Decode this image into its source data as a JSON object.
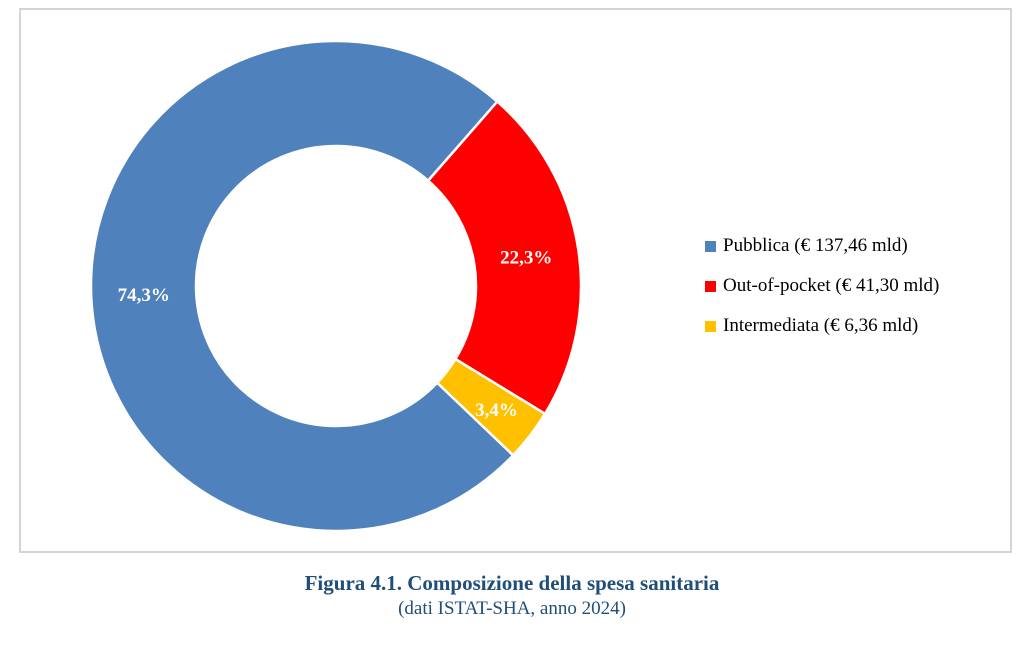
{
  "figure": {
    "caption_title": "Figura 4.1. Composizione della spesa sanitaria",
    "caption_subtitle": "(dati ISTAT-SHA, anno 2024)",
    "caption_color": "#1F4E79"
  },
  "chart_data": {
    "type": "pie",
    "subtype": "donut",
    "title": "",
    "categories": [
      "Pubblica",
      "Out-of-pocket",
      "Intermediata"
    ],
    "values": [
      74.3,
      22.3,
      3.4
    ],
    "value_labels": [
      "74,3%",
      "22,3%",
      "3,4%"
    ],
    "amounts": [
      "€ 137,46 mld",
      "€ 41,30 mld",
      "€ 6,36 mld"
    ],
    "legend_entries": [
      "Pubblica (€ 137,46 mld)",
      "Out-of-pocket (€ 41,30 mld)",
      "Intermediata (€ 6,36 mld)"
    ],
    "colors": [
      "#4F81BD",
      "#FF0000",
      "#FFC000"
    ],
    "legend_position": "right",
    "start_angle_deg": 133.7,
    "donut_hole_ratio": 0.57,
    "separator_color": "#FFFFFF",
    "label_color": "#FFFFFF",
    "grid": false
  }
}
